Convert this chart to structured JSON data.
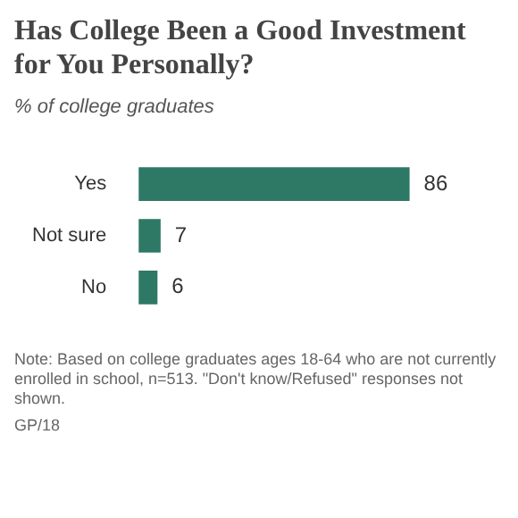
{
  "chart_data": {
    "type": "bar",
    "title": "Has College Been a Good Investment for You Personally?",
    "subtitle": "% of college graduates",
    "orientation": "horizontal",
    "categories": [
      "Yes",
      "Not sure",
      "No"
    ],
    "values": [
      86,
      7,
      6
    ],
    "color": "#2e7866",
    "data_labels": true,
    "annotations": [
      "Note: Based on college graduates ages 18-64 who are not currently enrolled in school, n=513. \"Don't know/Refused\" responses not shown.",
      "GP/18"
    ]
  }
}
